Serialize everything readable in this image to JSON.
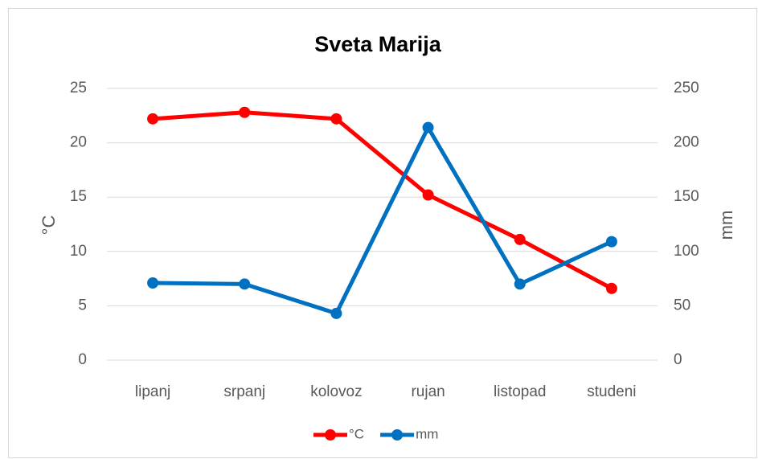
{
  "chart_data": {
    "type": "line",
    "title": "Sveta Marija",
    "categories": [
      "lipanj",
      "srpanj",
      "kolovoz",
      "rujan",
      "listopad",
      "studeni"
    ],
    "series": [
      {
        "name": "°C",
        "color": "#ff0000",
        "values": [
          22.2,
          22.8,
          22.2,
          15.2,
          11.1,
          6.6
        ]
      },
      {
        "name": "mm",
        "color": "#0070c0",
        "axis": "y2",
        "values": [
          71,
          70,
          43,
          214,
          70,
          109
        ]
      }
    ],
    "y_label": "°C",
    "y2_label": "mm",
    "ylim": [
      0,
      25
    ],
    "yticks": [
      0,
      5,
      10,
      15,
      20,
      25
    ],
    "y2lim": [
      0,
      250
    ],
    "y2ticks": [
      0,
      50,
      100,
      150,
      200,
      250
    ],
    "grid": true,
    "legend": "bottom"
  }
}
